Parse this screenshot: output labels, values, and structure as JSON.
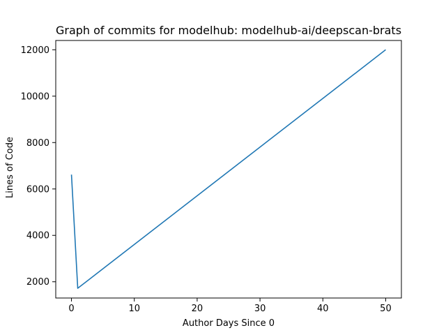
{
  "chart_data": {
    "type": "line",
    "title": "Graph of commits for modelhub: modelhub-ai/deepscan-brats",
    "xlabel": "Author Days Since 0",
    "ylabel": "Lines of Code",
    "xlim": [
      -2.5,
      52.5
    ],
    "ylim": [
      1300,
      12400
    ],
    "xticks": [
      0,
      10,
      20,
      30,
      40,
      50
    ],
    "yticks": [
      2000,
      4000,
      6000,
      8000,
      10000,
      12000
    ],
    "grid": false,
    "series": [
      {
        "color": "#1f77b4",
        "x": [
          0,
          1,
          50
        ],
        "y": [
          6620,
          1720,
          12000
        ]
      }
    ]
  }
}
